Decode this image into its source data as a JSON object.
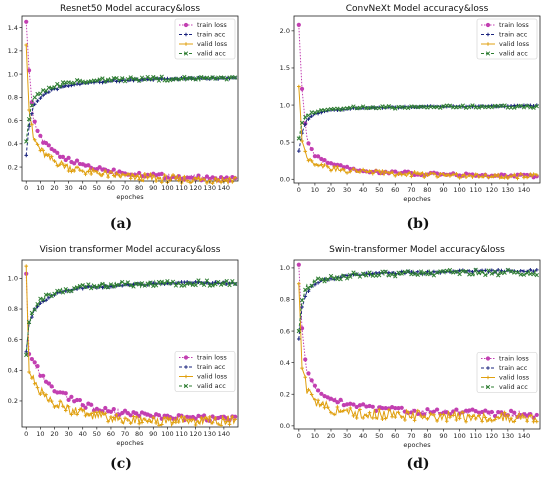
{
  "captions": [
    "(a)",
    "(b)",
    "(c)",
    "(d)"
  ],
  "chart_data": [
    {
      "type": "line",
      "title": "Resnet50 Model accuracy&loss",
      "xlabel": "epoches",
      "ylabel": "",
      "xlim": [
        -3,
        150
      ],
      "ylim": [
        0.08,
        1.5
      ],
      "xticks": [
        "0",
        "10",
        "20",
        "30",
        "40",
        "50",
        "60",
        "70",
        "80",
        "90",
        "100",
        "110",
        "120",
        "130",
        "140"
      ],
      "yticks": [
        "0.2",
        "0.4",
        "0.6",
        "0.8",
        "1.0",
        "1.2",
        "1.4"
      ],
      "legend_position": "top-right",
      "series": [
        {
          "name": "train loss",
          "color": "#c23fb1",
          "style": "dotted",
          "marker": "circle",
          "values": [
            [
              0,
              1.45
            ],
            [
              2,
              1.05
            ],
            [
              5,
              0.62
            ],
            [
              10,
              0.45
            ],
            [
              15,
              0.38
            ],
            [
              20,
              0.33
            ],
            [
              30,
              0.26
            ],
            [
              40,
              0.22
            ],
            [
              50,
              0.19
            ],
            [
              60,
              0.17
            ],
            [
              70,
              0.15
            ],
            [
              80,
              0.14
            ],
            [
              90,
              0.13
            ],
            [
              100,
              0.12
            ],
            [
              110,
              0.11
            ],
            [
              120,
              0.11
            ],
            [
              130,
              0.1
            ],
            [
              140,
              0.1
            ],
            [
              148,
              0.1
            ]
          ]
        },
        {
          "name": "train acc",
          "color": "#1a237e",
          "style": "dashed",
          "marker": "plus",
          "values": [
            [
              0,
              0.3
            ],
            [
              2,
              0.55
            ],
            [
              5,
              0.72
            ],
            [
              10,
              0.8
            ],
            [
              15,
              0.84
            ],
            [
              20,
              0.87
            ],
            [
              30,
              0.9
            ],
            [
              40,
              0.92
            ],
            [
              50,
              0.93
            ],
            [
              60,
              0.94
            ],
            [
              80,
              0.95
            ],
            [
              100,
              0.96
            ],
            [
              120,
              0.96
            ],
            [
              148,
              0.97
            ]
          ]
        },
        {
          "name": "valid loss",
          "color": "#e0a010",
          "style": "solid",
          "marker": "plus",
          "values": [
            [
              0,
              1.25
            ],
            [
              2,
              0.7
            ],
            [
              5,
              0.45
            ],
            [
              10,
              0.35
            ],
            [
              15,
              0.28
            ],
            [
              20,
              0.25
            ],
            [
              30,
              0.2
            ],
            [
              40,
              0.17
            ],
            [
              50,
              0.15
            ],
            [
              60,
              0.13
            ],
            [
              70,
              0.12
            ],
            [
              80,
              0.11
            ],
            [
              100,
              0.1
            ],
            [
              120,
              0.09
            ],
            [
              148,
              0.09
            ]
          ]
        },
        {
          "name": "valid acc",
          "color": "#2e7d32",
          "style": "dashed",
          "marker": "x",
          "values": [
            [
              0,
              0.42
            ],
            [
              2,
              0.62
            ],
            [
              5,
              0.78
            ],
            [
              10,
              0.84
            ],
            [
              15,
              0.88
            ],
            [
              20,
              0.9
            ],
            [
              30,
              0.92
            ],
            [
              40,
              0.94
            ],
            [
              50,
              0.95
            ],
            [
              60,
              0.95
            ],
            [
              80,
              0.96
            ],
            [
              100,
              0.96
            ],
            [
              120,
              0.96
            ],
            [
              148,
              0.96
            ]
          ]
        }
      ]
    },
    {
      "type": "line",
      "title": "ConvNeXt Model accuracy&loss",
      "xlabel": "epoches",
      "ylabel": "",
      "xlim": [
        -3,
        150
      ],
      "ylim": [
        -0.05,
        2.2
      ],
      "xticks": [
        "0",
        "10",
        "20",
        "30",
        "40",
        "50",
        "60",
        "70",
        "80",
        "90",
        "100",
        "110",
        "120",
        "130",
        "140"
      ],
      "yticks": [
        "0.0",
        "0.5",
        "1.0",
        "1.5",
        "2.0"
      ],
      "legend_position": "top-right",
      "series": [
        {
          "name": "train loss",
          "color": "#c23fb1",
          "style": "dotted",
          "marker": "circle",
          "values": [
            [
              0,
              2.08
            ],
            [
              2,
              1.2
            ],
            [
              5,
              0.55
            ],
            [
              10,
              0.32
            ],
            [
              15,
              0.25
            ],
            [
              20,
              0.2
            ],
            [
              30,
              0.15
            ],
            [
              40,
              0.12
            ],
            [
              50,
              0.1
            ],
            [
              60,
              0.09
            ],
            [
              80,
              0.07
            ],
            [
              100,
              0.06
            ],
            [
              120,
              0.05
            ],
            [
              148,
              0.04
            ]
          ]
        },
        {
          "name": "train acc",
          "color": "#1a237e",
          "style": "dashed",
          "marker": "plus",
          "values": [
            [
              0,
              0.38
            ],
            [
              2,
              0.62
            ],
            [
              5,
              0.8
            ],
            [
              10,
              0.88
            ],
            [
              15,
              0.91
            ],
            [
              20,
              0.93
            ],
            [
              30,
              0.95
            ],
            [
              40,
              0.96
            ],
            [
              60,
              0.97
            ],
            [
              80,
              0.98
            ],
            [
              100,
              0.98
            ],
            [
              148,
              0.99
            ]
          ]
        },
        {
          "name": "valid loss",
          "color": "#e0a010",
          "style": "solid",
          "marker": "plus",
          "values": [
            [
              0,
              1.25
            ],
            [
              2,
              0.55
            ],
            [
              5,
              0.3
            ],
            [
              10,
              0.22
            ],
            [
              15,
              0.18
            ],
            [
              20,
              0.15
            ],
            [
              30,
              0.12
            ],
            [
              40,
              0.1
            ],
            [
              60,
              0.08
            ],
            [
              80,
              0.06
            ],
            [
              100,
              0.05
            ],
            [
              120,
              0.04
            ],
            [
              148,
              0.04
            ]
          ]
        },
        {
          "name": "valid acc",
          "color": "#2e7d32",
          "style": "dashed",
          "marker": "x",
          "values": [
            [
              0,
              0.55
            ],
            [
              2,
              0.75
            ],
            [
              5,
              0.86
            ],
            [
              10,
              0.91
            ],
            [
              15,
              0.93
            ],
            [
              20,
              0.95
            ],
            [
              30,
              0.96
            ],
            [
              40,
              0.97
            ],
            [
              60,
              0.97
            ],
            [
              80,
              0.98
            ],
            [
              100,
              0.98
            ],
            [
              148,
              0.98
            ]
          ]
        }
      ]
    },
    {
      "type": "line",
      "title": "Vision transformer Model accuracy&loss",
      "xlabel": "epoches",
      "ylabel": "",
      "xlim": [
        -3,
        150
      ],
      "ylim": [
        0.03,
        1.12
      ],
      "xticks": [
        "0",
        "10",
        "20",
        "30",
        "40",
        "50",
        "60",
        "70",
        "80",
        "90",
        "100",
        "110",
        "120",
        "130",
        "140"
      ],
      "yticks": [
        "0.2",
        "0.4",
        "0.6",
        "0.8",
        "1.0"
      ],
      "legend_position": "center-right",
      "series": [
        {
          "name": "train loss",
          "color": "#c23fb1",
          "style": "dotted",
          "marker": "circle",
          "values": [
            [
              0,
              1.03
            ],
            [
              2,
              0.5
            ],
            [
              5,
              0.45
            ],
            [
              10,
              0.38
            ],
            [
              15,
              0.32
            ],
            [
              20,
              0.28
            ],
            [
              30,
              0.22
            ],
            [
              40,
              0.18
            ],
            [
              50,
              0.15
            ],
            [
              60,
              0.13
            ],
            [
              70,
              0.12
            ],
            [
              80,
              0.11
            ],
            [
              100,
              0.1
            ],
            [
              120,
              0.09
            ],
            [
              148,
              0.08
            ]
          ]
        },
        {
          "name": "train acc",
          "color": "#1a237e",
          "style": "dashed",
          "marker": "plus",
          "values": [
            [
              0,
              0.52
            ],
            [
              2,
              0.7
            ],
            [
              5,
              0.78
            ],
            [
              10,
              0.84
            ],
            [
              15,
              0.87
            ],
            [
              20,
              0.9
            ],
            [
              30,
              0.92
            ],
            [
              40,
              0.94
            ],
            [
              60,
              0.95
            ],
            [
              80,
              0.96
            ],
            [
              100,
              0.97
            ],
            [
              148,
              0.97
            ]
          ]
        },
        {
          "name": "valid loss",
          "color": "#e0a010",
          "style": "solid",
          "marker": "plus",
          "values": [
            [
              0,
              1.08
            ],
            [
              2,
              0.4
            ],
            [
              5,
              0.33
            ],
            [
              10,
              0.27
            ],
            [
              15,
              0.22
            ],
            [
              20,
              0.18
            ],
            [
              30,
              0.15
            ],
            [
              40,
              0.12
            ],
            [
              50,
              0.1
            ],
            [
              60,
              0.09
            ],
            [
              80,
              0.08
            ],
            [
              100,
              0.07
            ],
            [
              120,
              0.07
            ],
            [
              148,
              0.07
            ]
          ]
        },
        {
          "name": "valid acc",
          "color": "#2e7d32",
          "style": "dashed",
          "marker": "x",
          "values": [
            [
              0,
              0.5
            ],
            [
              2,
              0.72
            ],
            [
              5,
              0.8
            ],
            [
              10,
              0.86
            ],
            [
              15,
              0.89
            ],
            [
              20,
              0.91
            ],
            [
              30,
              0.93
            ],
            [
              40,
              0.95
            ],
            [
              60,
              0.96
            ],
            [
              80,
              0.96
            ],
            [
              100,
              0.97
            ],
            [
              148,
              0.97
            ]
          ]
        }
      ]
    },
    {
      "type": "line",
      "title": "Swin-transformer  Model accuracy&loss",
      "xlabel": "epoches",
      "ylabel": "",
      "xlim": [
        -3,
        150
      ],
      "ylim": [
        -0.02,
        1.05
      ],
      "xticks": [
        "0",
        "10",
        "20",
        "30",
        "40",
        "50",
        "60",
        "70",
        "80",
        "90",
        "100",
        "110",
        "120",
        "130",
        "140"
      ],
      "yticks": [
        "0.0",
        "0.2",
        "0.4",
        "0.6",
        "0.8",
        "1.0"
      ],
      "legend_position": "center-right",
      "series": [
        {
          "name": "train loss",
          "color": "#c23fb1",
          "style": "dotted",
          "marker": "circle",
          "values": [
            [
              0,
              1.02
            ],
            [
              2,
              0.6
            ],
            [
              5,
              0.35
            ],
            [
              10,
              0.25
            ],
            [
              15,
              0.2
            ],
            [
              20,
              0.17
            ],
            [
              30,
              0.14
            ],
            [
              40,
              0.12
            ],
            [
              50,
              0.11
            ],
            [
              60,
              0.1
            ],
            [
              80,
              0.09
            ],
            [
              100,
              0.09
            ],
            [
              120,
              0.08
            ],
            [
              148,
              0.07
            ]
          ]
        },
        {
          "name": "train acc",
          "color": "#1a237e",
          "style": "dashed",
          "marker": "plus",
          "values": [
            [
              0,
              0.55
            ],
            [
              2,
              0.75
            ],
            [
              5,
              0.85
            ],
            [
              10,
              0.9
            ],
            [
              15,
              0.92
            ],
            [
              20,
              0.93
            ],
            [
              30,
              0.95
            ],
            [
              40,
              0.96
            ],
            [
              60,
              0.97
            ],
            [
              80,
              0.97
            ],
            [
              100,
              0.98
            ],
            [
              148,
              0.98
            ]
          ]
        },
        {
          "name": "valid loss",
          "color": "#e0a010",
          "style": "solid",
          "marker": "plus",
          "values": [
            [
              0,
              0.9
            ],
            [
              2,
              0.4
            ],
            [
              5,
              0.22
            ],
            [
              10,
              0.15
            ],
            [
              15,
              0.13
            ],
            [
              20,
              0.11
            ],
            [
              30,
              0.09
            ],
            [
              40,
              0.08
            ],
            [
              60,
              0.07
            ],
            [
              80,
              0.06
            ],
            [
              100,
              0.06
            ],
            [
              120,
              0.05
            ],
            [
              148,
              0.05
            ]
          ]
        },
        {
          "name": "valid acc",
          "color": "#2e7d32",
          "style": "dashed",
          "marker": "x",
          "values": [
            [
              0,
              0.6
            ],
            [
              2,
              0.8
            ],
            [
              5,
              0.88
            ],
            [
              10,
              0.91
            ],
            [
              15,
              0.93
            ],
            [
              20,
              0.94
            ],
            [
              30,
              0.95
            ],
            [
              40,
              0.96
            ],
            [
              60,
              0.96
            ],
            [
              80,
              0.97
            ],
            [
              100,
              0.97
            ],
            [
              148,
              0.97
            ]
          ]
        }
      ]
    }
  ]
}
